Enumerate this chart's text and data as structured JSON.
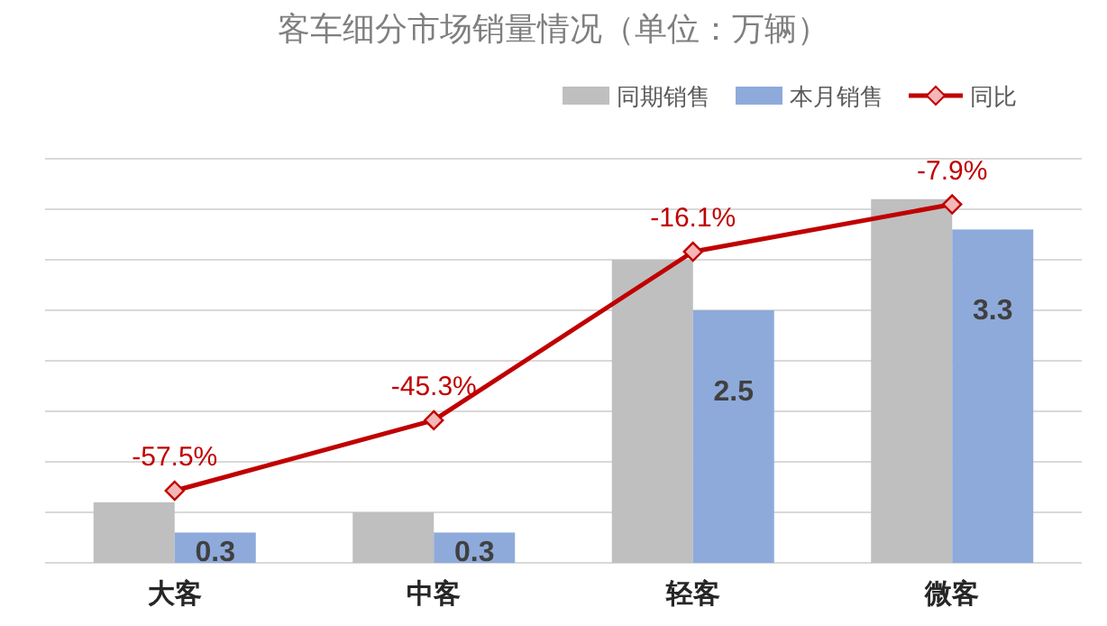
{
  "chart_data": {
    "type": "bar",
    "title": "客车细分市场销量情况（单位：万辆）",
    "categories": [
      "大客",
      "中客",
      "轻客",
      "微客"
    ],
    "series": [
      {
        "name": "同期销售",
        "color": "#bfbfbf",
        "values": [
          0.6,
          0.5,
          3.0,
          3.6
        ]
      },
      {
        "name": "本月销售",
        "color": "#8eaadb",
        "values": [
          0.3,
          0.3,
          2.5,
          3.3
        ],
        "value_labels": [
          "0.3",
          "0.3",
          "2.5",
          "3.3"
        ]
      },
      {
        "name": "同比",
        "type": "line",
        "axis": "y2",
        "color": "#c00000",
        "marker": "diamond",
        "values": [
          -57.5,
          -45.3,
          -16.1,
          -7.9
        ],
        "value_labels": [
          "-57.5%",
          "-45.3%",
          "-16.1%",
          "-7.9%"
        ]
      }
    ],
    "ylim": [
      0,
      4
    ],
    "yticks": [
      {
        "value": 0,
        "label": null
      },
      {
        "value": 0.5,
        "label": null
      },
      {
        "value": 1,
        "label": null
      },
      {
        "value": 1.5,
        "label": null
      },
      {
        "value": 2,
        "label": null
      },
      {
        "value": 2.5,
        "label": null
      },
      {
        "value": 3,
        "label": null
      },
      {
        "value": 3.5,
        "label": null
      },
      {
        "value": 4,
        "label": null
      }
    ],
    "y2lim": [
      -70,
      0
    ],
    "grid": true,
    "legend": "top right"
  }
}
